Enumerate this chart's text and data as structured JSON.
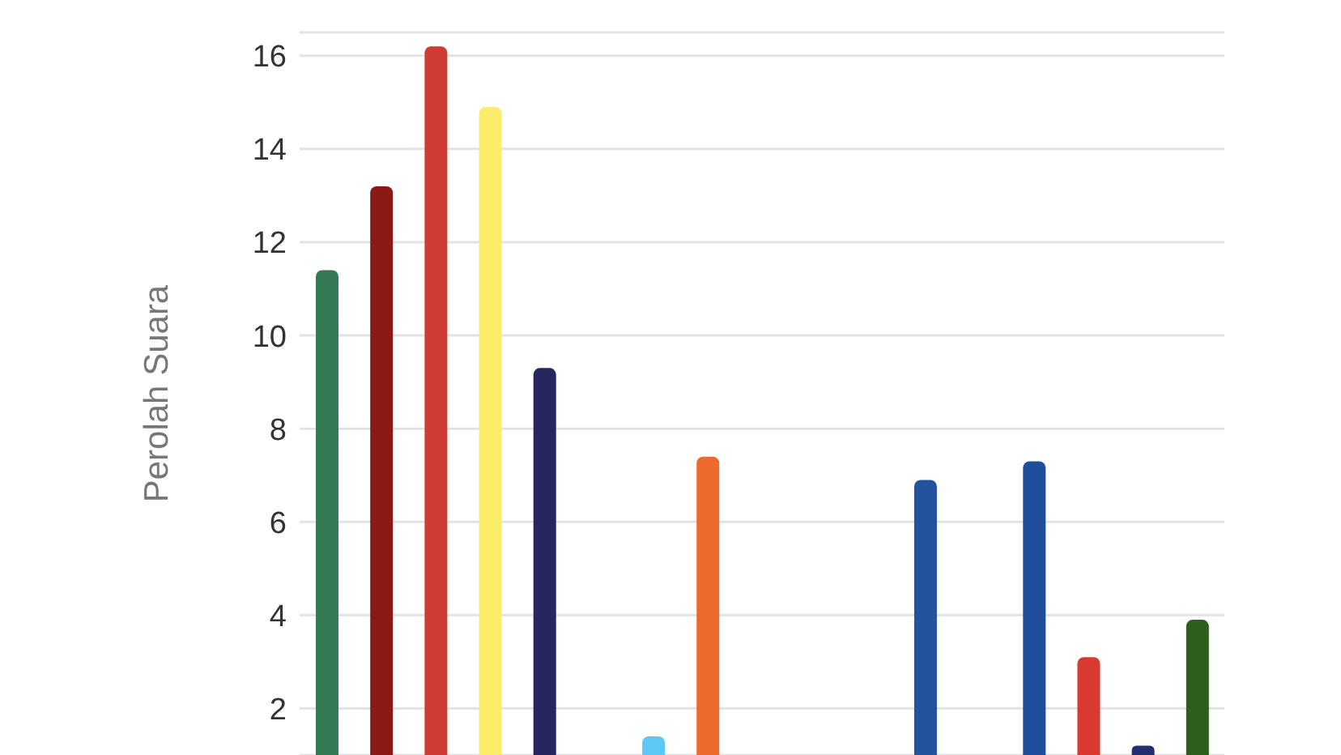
{
  "chart_data": {
    "type": "bar",
    "ylabel": "Perolah Suara",
    "categories": [
      null,
      null,
      null,
      null,
      null,
      null,
      null,
      null,
      null,
      null,
      null,
      null,
      null,
      null,
      null,
      null,
      null
    ],
    "values": [
      11.4,
      13.2,
      16.2,
      14.9,
      9.3,
      null,
      1.4,
      7.4,
      null,
      null,
      null,
      6.9,
      null,
      7.3,
      3.1,
      1.2,
      3.9
    ],
    "colors": [
      "#347a55",
      "#8b1a16",
      "#d13b35",
      "#fbec6b",
      "#25275e",
      "#cccccc",
      "#5bc8f5",
      "#ec6a2c",
      "#cccccc",
      "#cccccc",
      "#cccccc",
      "#23539c",
      "#cccccc",
      "#1f4f9a",
      "#d9392f",
      "#223070",
      "#2d5e1c"
    ],
    "ylim": [
      1,
      16.5
    ],
    "yticks": [
      2,
      4,
      6,
      8,
      10,
      12,
      14,
      16
    ],
    "grid": "y",
    "tick_labels": "y"
  }
}
